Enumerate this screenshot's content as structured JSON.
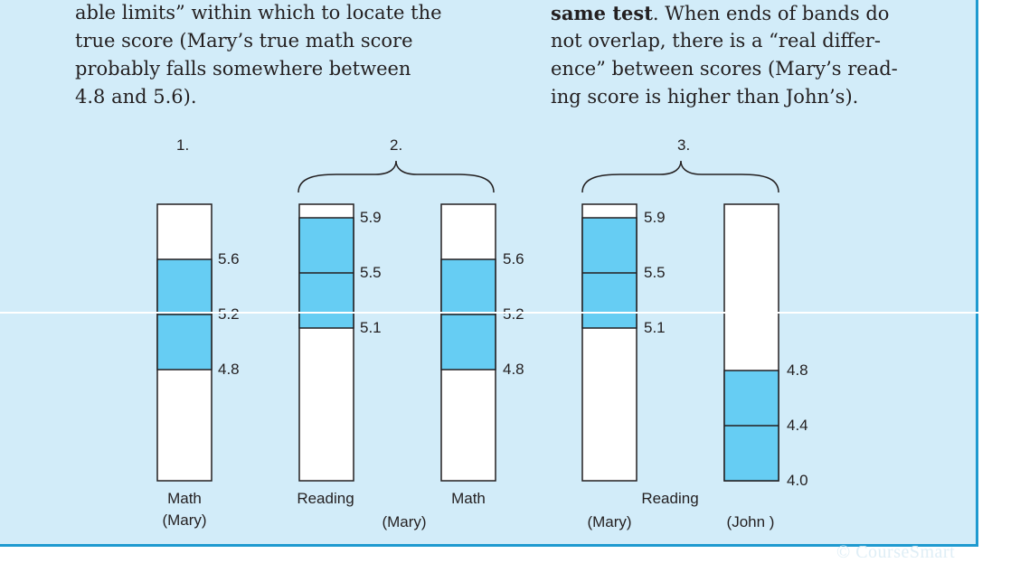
{
  "left_text": [
    "able limits” within which to locate the",
    "true score (Mary’s true math score",
    "probably falls somewhere between",
    "4.8 and 5.6)."
  ],
  "right_text": {
    "line1_bold": "same test",
    "line1_rest": ".   When ends of bands do",
    "line2": "not overlap, there is a “real differ-",
    "line3": "ence” between scores (Mary’s read-",
    "line4": "ing score is higher than John’s)."
  },
  "watermark": "© CourseSmart",
  "diagram": {
    "group_labels": [
      "1.",
      "2.",
      "3."
    ],
    "bars": [
      {
        "id": "g1-math",
        "band": [
          4.8,
          5.6
        ],
        "mid": 5.2,
        "ticks": [
          "5.6",
          "5.2",
          "4.8"
        ]
      },
      {
        "id": "g2-reading",
        "band": [
          5.1,
          5.9
        ],
        "mid": 5.5,
        "ticks": [
          "5.9",
          "5.5",
          "5.1"
        ]
      },
      {
        "id": "g2-math",
        "band": [
          4.8,
          5.6
        ],
        "mid": 5.2,
        "ticks": [
          "5.6",
          "5.2",
          "4.8"
        ]
      },
      {
        "id": "g3-reading-mary",
        "band": [
          5.1,
          5.9
        ],
        "mid": 5.5,
        "ticks": [
          "5.9",
          "5.5",
          "5.1"
        ]
      },
      {
        "id": "g3-reading-john",
        "band": [
          4.0,
          4.8
        ],
        "mid": 4.4,
        "ticks": [
          "4.8",
          "4.4",
          "4.0"
        ]
      }
    ],
    "bottom_labels": {
      "g1_subject": "Math",
      "g1_person": "(Mary)",
      "g2_reading": "Reading",
      "g2_math": "Math",
      "g2_person": "(Mary)",
      "g3_subject": "Reading",
      "g3_mary": "(Mary)",
      "g3_john": "(John )"
    },
    "colors": {
      "band": "#66cdf3",
      "bar_fill": "#ffffff",
      "stroke": "#231f20",
      "panel": "#d2ecf9",
      "border": "#1f9ad0"
    }
  }
}
